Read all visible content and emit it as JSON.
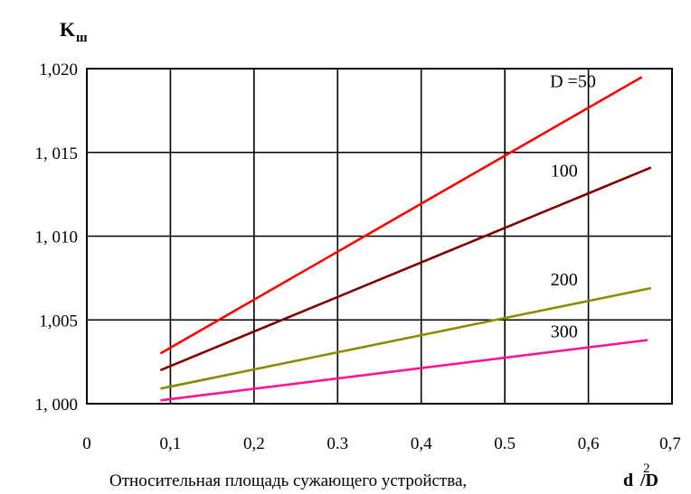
{
  "chart_data": {
    "type": "line",
    "ylabel": {
      "main": "K",
      "sub": "ш"
    },
    "xlabel": {
      "text": "Относительная площадь сужающего устройства,",
      "var": "d",
      "sup": "2",
      "den": "/D"
    },
    "xlim": [
      0,
      0.7
    ],
    "ylim": [
      1.0,
      1.02
    ],
    "x_ticks": [
      {
        "value": 0,
        "label": "0"
      },
      {
        "value": 0.1,
        "label": "0,1"
      },
      {
        "value": 0.2,
        "label": "0,2"
      },
      {
        "value": 0.3,
        "label": "0.3"
      },
      {
        "value": 0.4,
        "label": "0,4"
      },
      {
        "value": 0.5,
        "label": "0.5"
      },
      {
        "value": 0.6,
        "label": "0,6"
      },
      {
        "value": 0.7,
        "label": "0,7"
      }
    ],
    "y_ticks": [
      {
        "value": 1.0,
        "label": "1, 000"
      },
      {
        "value": 1.005,
        "label": "1,005"
      },
      {
        "value": 1.01,
        "label": "1, 010"
      },
      {
        "value": 1.015,
        "label": "1, 015"
      },
      {
        "value": 1.02,
        "label": "1,020"
      }
    ],
    "grid": true,
    "series": [
      {
        "name": "D =50",
        "color": "#ff0000",
        "x": [
          0.088,
          0.664
        ],
        "y": [
          1.003,
          1.0195
        ]
      },
      {
        "name": "100",
        "color": "#800000",
        "x": [
          0.088,
          0.675
        ],
        "y": [
          1.002,
          1.0141
        ]
      },
      {
        "name": "200",
        "color": "#8b8b00",
        "x": [
          0.088,
          0.675
        ],
        "y": [
          1.0009,
          1.0069
        ]
      },
      {
        "name": "300",
        "color": "#ff1493",
        "x": [
          0.088,
          0.671
        ],
        "y": [
          1.0002,
          1.0038
        ]
      }
    ]
  }
}
